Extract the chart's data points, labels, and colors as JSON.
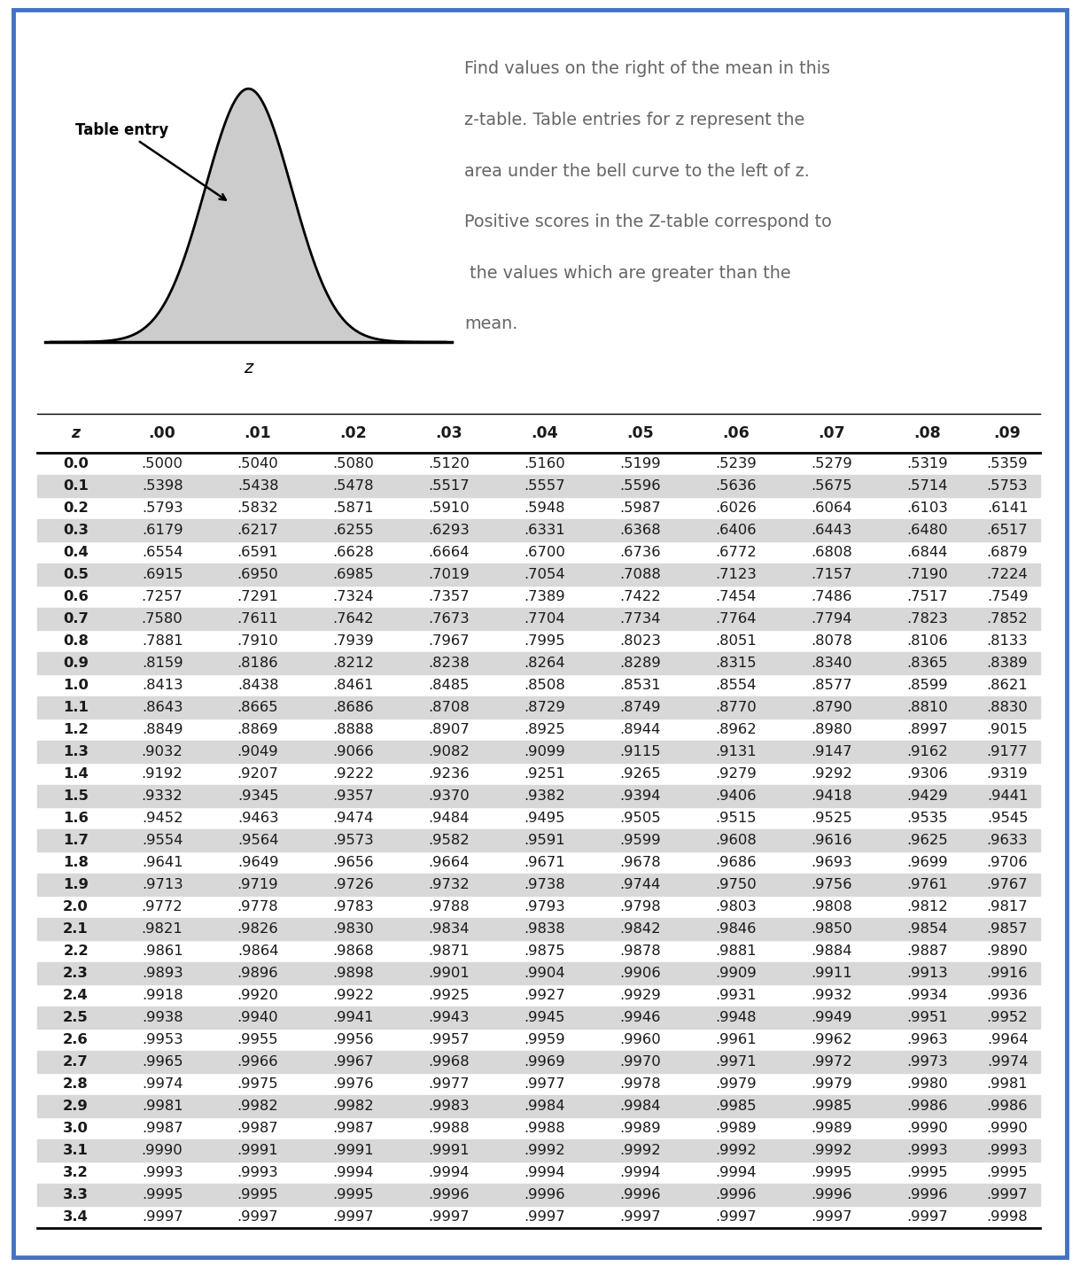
{
  "description": "Z-table for positive z scores",
  "border_color": "#4472C4",
  "background_color": "#FFFFFF",
  "text_color": "#1a1a1a",
  "header_color": "#1a1a1a",
  "shade_color": "#D8D8D8",
  "desc_line1": "Find values on the right of the mean in this",
  "desc_line2": "z-table. Table entries for z represent the",
  "desc_line3": "area under the bell curve to the left of z.",
  "desc_line4": "Positive scores in the Z-table correspond to",
  "desc_line5": " the values which are greater than the",
  "desc_line6": "mean.",
  "col_headers": [
    "z",
    ".00",
    ".01",
    ".02",
    ".03",
    ".04",
    ".05",
    ".06",
    ".07",
    ".08",
    ".09"
  ],
  "table_data": [
    [
      "0.0",
      ".5000",
      ".5040",
      ".5080",
      ".5120",
      ".5160",
      ".5199",
      ".5239",
      ".5279",
      ".5319",
      ".5359"
    ],
    [
      "0.1",
      ".5398",
      ".5438",
      ".5478",
      ".5517",
      ".5557",
      ".5596",
      ".5636",
      ".5675",
      ".5714",
      ".5753"
    ],
    [
      "0.2",
      ".5793",
      ".5832",
      ".5871",
      ".5910",
      ".5948",
      ".5987",
      ".6026",
      ".6064",
      ".6103",
      ".6141"
    ],
    [
      "0.3",
      ".6179",
      ".6217",
      ".6255",
      ".6293",
      ".6331",
      ".6368",
      ".6406",
      ".6443",
      ".6480",
      ".6517"
    ],
    [
      "0.4",
      ".6554",
      ".6591",
      ".6628",
      ".6664",
      ".6700",
      ".6736",
      ".6772",
      ".6808",
      ".6844",
      ".6879"
    ],
    [
      "0.5",
      ".6915",
      ".6950",
      ".6985",
      ".7019",
      ".7054",
      ".7088",
      ".7123",
      ".7157",
      ".7190",
      ".7224"
    ],
    [
      "0.6",
      ".7257",
      ".7291",
      ".7324",
      ".7357",
      ".7389",
      ".7422",
      ".7454",
      ".7486",
      ".7517",
      ".7549"
    ],
    [
      "0.7",
      ".7580",
      ".7611",
      ".7642",
      ".7673",
      ".7704",
      ".7734",
      ".7764",
      ".7794",
      ".7823",
      ".7852"
    ],
    [
      "0.8",
      ".7881",
      ".7910",
      ".7939",
      ".7967",
      ".7995",
      ".8023",
      ".8051",
      ".8078",
      ".8106",
      ".8133"
    ],
    [
      "0.9",
      ".8159",
      ".8186",
      ".8212",
      ".8238",
      ".8264",
      ".8289",
      ".8315",
      ".8340",
      ".8365",
      ".8389"
    ],
    [
      "1.0",
      ".8413",
      ".8438",
      ".8461",
      ".8485",
      ".8508",
      ".8531",
      ".8554",
      ".8577",
      ".8599",
      ".8621"
    ],
    [
      "1.1",
      ".8643",
      ".8665",
      ".8686",
      ".8708",
      ".8729",
      ".8749",
      ".8770",
      ".8790",
      ".8810",
      ".8830"
    ],
    [
      "1.2",
      ".8849",
      ".8869",
      ".8888",
      ".8907",
      ".8925",
      ".8944",
      ".8962",
      ".8980",
      ".8997",
      ".9015"
    ],
    [
      "1.3",
      ".9032",
      ".9049",
      ".9066",
      ".9082",
      ".9099",
      ".9115",
      ".9131",
      ".9147",
      ".9162",
      ".9177"
    ],
    [
      "1.4",
      ".9192",
      ".9207",
      ".9222",
      ".9236",
      ".9251",
      ".9265",
      ".9279",
      ".9292",
      ".9306",
      ".9319"
    ],
    [
      "1.5",
      ".9332",
      ".9345",
      ".9357",
      ".9370",
      ".9382",
      ".9394",
      ".9406",
      ".9418",
      ".9429",
      ".9441"
    ],
    [
      "1.6",
      ".9452",
      ".9463",
      ".9474",
      ".9484",
      ".9495",
      ".9505",
      ".9515",
      ".9525",
      ".9535",
      ".9545"
    ],
    [
      "1.7",
      ".9554",
      ".9564",
      ".9573",
      ".9582",
      ".9591",
      ".9599",
      ".9608",
      ".9616",
      ".9625",
      ".9633"
    ],
    [
      "1.8",
      ".9641",
      ".9649",
      ".9656",
      ".9664",
      ".9671",
      ".9678",
      ".9686",
      ".9693",
      ".9699",
      ".9706"
    ],
    [
      "1.9",
      ".9713",
      ".9719",
      ".9726",
      ".9732",
      ".9738",
      ".9744",
      ".9750",
      ".9756",
      ".9761",
      ".9767"
    ],
    [
      "2.0",
      ".9772",
      ".9778",
      ".9783",
      ".9788",
      ".9793",
      ".9798",
      ".9803",
      ".9808",
      ".9812",
      ".9817"
    ],
    [
      "2.1",
      ".9821",
      ".9826",
      ".9830",
      ".9834",
      ".9838",
      ".9842",
      ".9846",
      ".9850",
      ".9854",
      ".9857"
    ],
    [
      "2.2",
      ".9861",
      ".9864",
      ".9868",
      ".9871",
      ".9875",
      ".9878",
      ".9881",
      ".9884",
      ".9887",
      ".9890"
    ],
    [
      "2.3",
      ".9893",
      ".9896",
      ".9898",
      ".9901",
      ".9904",
      ".9906",
      ".9909",
      ".9911",
      ".9913",
      ".9916"
    ],
    [
      "2.4",
      ".9918",
      ".9920",
      ".9922",
      ".9925",
      ".9927",
      ".9929",
      ".9931",
      ".9932",
      ".9934",
      ".9936"
    ],
    [
      "2.5",
      ".9938",
      ".9940",
      ".9941",
      ".9943",
      ".9945",
      ".9946",
      ".9948",
      ".9949",
      ".9951",
      ".9952"
    ],
    [
      "2.6",
      ".9953",
      ".9955",
      ".9956",
      ".9957",
      ".9959",
      ".9960",
      ".9961",
      ".9962",
      ".9963",
      ".9964"
    ],
    [
      "2.7",
      ".9965",
      ".9966",
      ".9967",
      ".9968",
      ".9969",
      ".9970",
      ".9971",
      ".9972",
      ".9973",
      ".9974"
    ],
    [
      "2.8",
      ".9974",
      ".9975",
      ".9976",
      ".9977",
      ".9977",
      ".9978",
      ".9979",
      ".9979",
      ".9980",
      ".9981"
    ],
    [
      "2.9",
      ".9981",
      ".9982",
      ".9982",
      ".9983",
      ".9984",
      ".9984",
      ".9985",
      ".9985",
      ".9986",
      ".9986"
    ],
    [
      "3.0",
      ".9987",
      ".9987",
      ".9987",
      ".9988",
      ".9988",
      ".9989",
      ".9989",
      ".9989",
      ".9990",
      ".9990"
    ],
    [
      "3.1",
      ".9990",
      ".9991",
      ".9991",
      ".9991",
      ".9992",
      ".9992",
      ".9992",
      ".9992",
      ".9993",
      ".9993"
    ],
    [
      "3.2",
      ".9993",
      ".9993",
      ".9994",
      ".9994",
      ".9994",
      ".9994",
      ".9994",
      ".9995",
      ".9995",
      ".9995"
    ],
    [
      "3.3",
      ".9995",
      ".9995",
      ".9995",
      ".9996",
      ".9996",
      ".9996",
      ".9996",
      ".9996",
      ".9996",
      ".9997"
    ],
    [
      "3.4",
      ".9997",
      ".9997",
      ".9997",
      ".9997",
      ".9997",
      ".9997",
      ".9997",
      ".9997",
      ".9997",
      ".9998"
    ]
  ]
}
